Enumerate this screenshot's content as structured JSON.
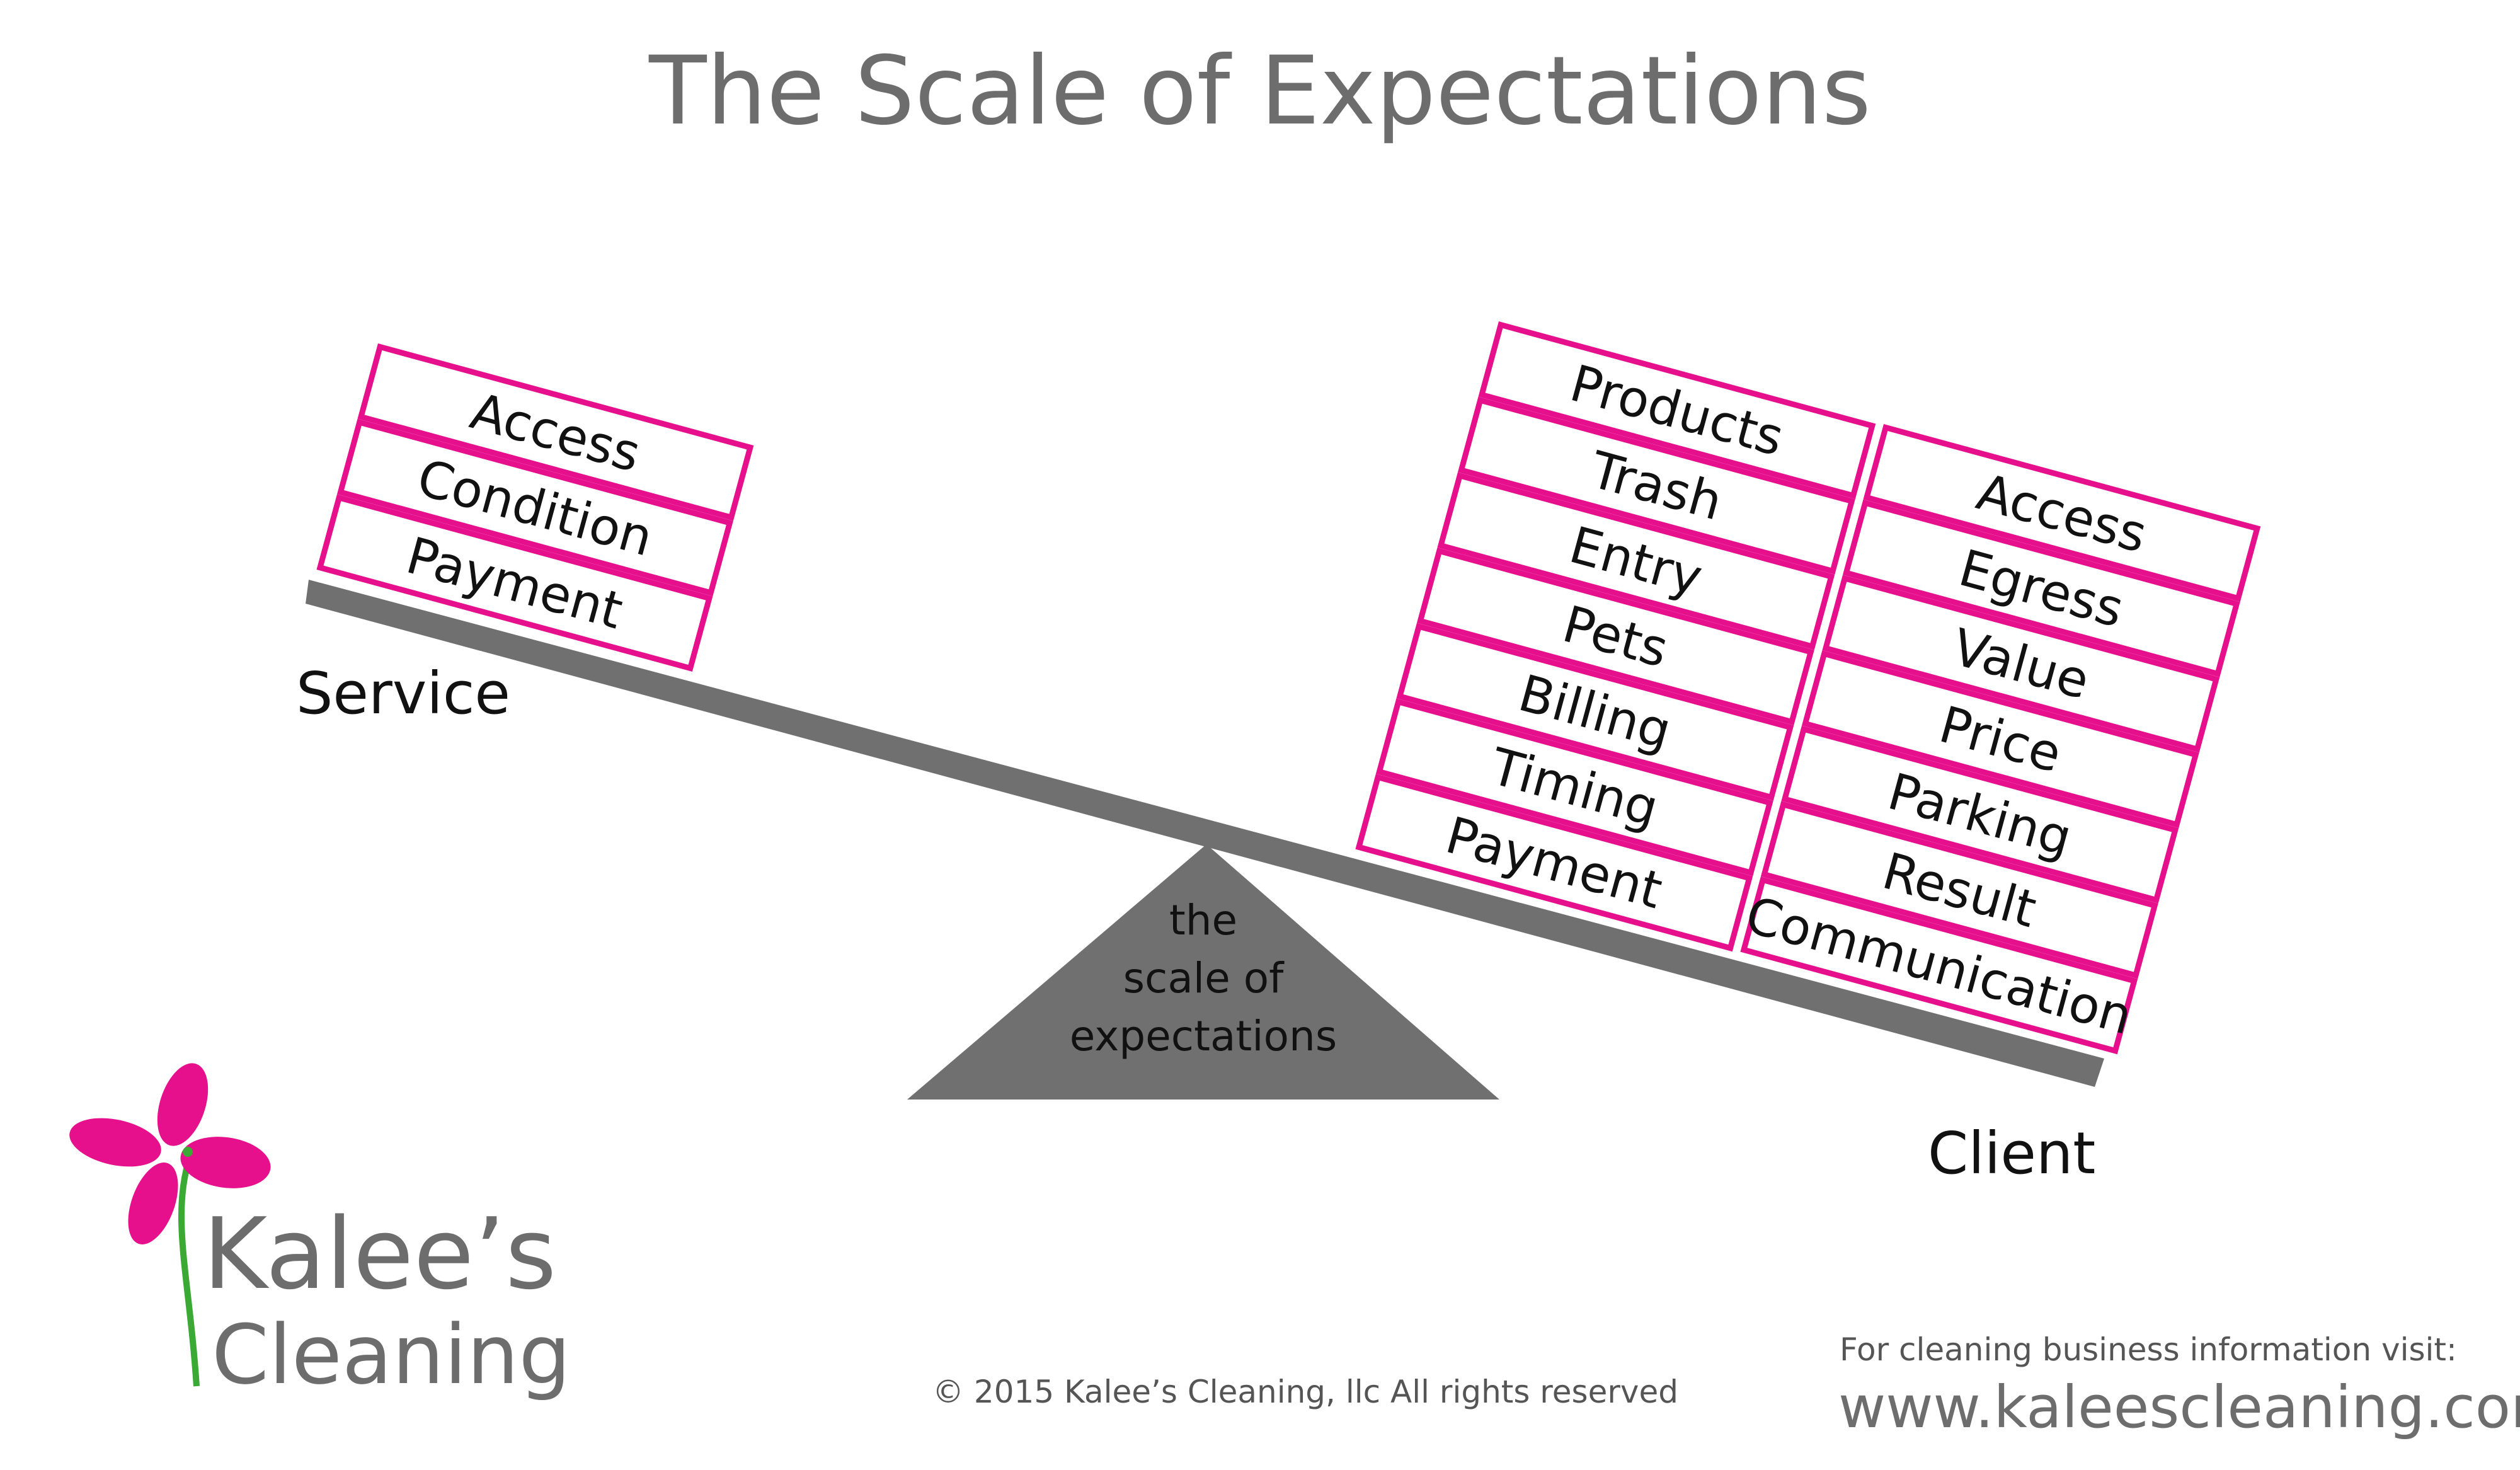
{
  "title": "The Scale of Expectations",
  "service_label": "Service",
  "client_label": "Client",
  "fulcrum_lines": [
    "the",
    "scale of",
    "expectations"
  ],
  "service_items": [
    "Access",
    "Condition",
    "Payment"
  ],
  "client_left_items": [
    "Products",
    "Trash",
    "Entry",
    "Pets",
    "Billing",
    "Timing",
    "Payment"
  ],
  "client_right_items": [
    "Access",
    "Egress",
    "Value",
    "Price",
    "Parking",
    "Result",
    "Communication"
  ],
  "logo": {
    "line1": "Kalee’s",
    "line2": "Cleaning"
  },
  "copyright": "© 2015 Kalee’s Cleaning, llc All rights reserved",
  "visit_text": "For cleaning business information visit:",
  "url": "www.kaleescleaning.com",
  "colors": {
    "accent": "#e6108c",
    "beam": "#707070",
    "title": "#6d6d6d",
    "stem": "#3aaa35"
  }
}
